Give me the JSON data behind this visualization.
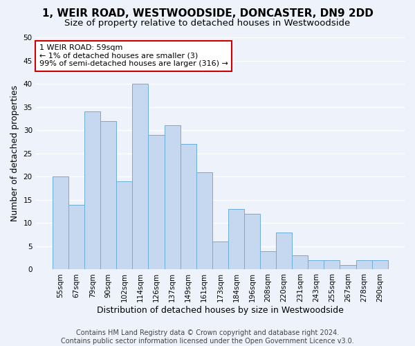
{
  "title": "1, WEIR ROAD, WESTWOODSIDE, DONCASTER, DN9 2DD",
  "subtitle": "Size of property relative to detached houses in Westwoodside",
  "xlabel": "Distribution of detached houses by size in Westwoodside",
  "ylabel": "Number of detached properties",
  "categories": [
    "55sqm",
    "67sqm",
    "79sqm",
    "90sqm",
    "102sqm",
    "114sqm",
    "126sqm",
    "137sqm",
    "149sqm",
    "161sqm",
    "173sqm",
    "184sqm",
    "196sqm",
    "208sqm",
    "220sqm",
    "231sqm",
    "243sqm",
    "255sqm",
    "267sqm",
    "278sqm",
    "290sqm"
  ],
  "values": [
    20,
    14,
    34,
    32,
    19,
    40,
    29,
    31,
    27,
    21,
    6,
    13,
    12,
    4,
    8,
    3,
    2,
    2,
    1,
    2,
    2
  ],
  "bar_color": "#c5d8ef",
  "bar_edge_color": "#6baed6",
  "ylim": [
    0,
    50
  ],
  "yticks": [
    0,
    5,
    10,
    15,
    20,
    25,
    30,
    35,
    40,
    45,
    50
  ],
  "annotation_title": "1 WEIR ROAD: 59sqm",
  "annotation_line1": "← 1% of detached houses are smaller (3)",
  "annotation_line2": "99% of semi-detached houses are larger (316) →",
  "annotation_box_color": "#ffffff",
  "annotation_box_edge": "#cc0000",
  "footer1": "Contains HM Land Registry data © Crown copyright and database right 2024.",
  "footer2": "Contains public sector information licensed under the Open Government Licence v3.0.",
  "background_color": "#eef2fb",
  "grid_color": "#ffffff",
  "title_fontsize": 11,
  "subtitle_fontsize": 9.5,
  "axis_label_fontsize": 9,
  "tick_fontsize": 7.5,
  "annotation_fontsize": 8,
  "footer_fontsize": 7
}
